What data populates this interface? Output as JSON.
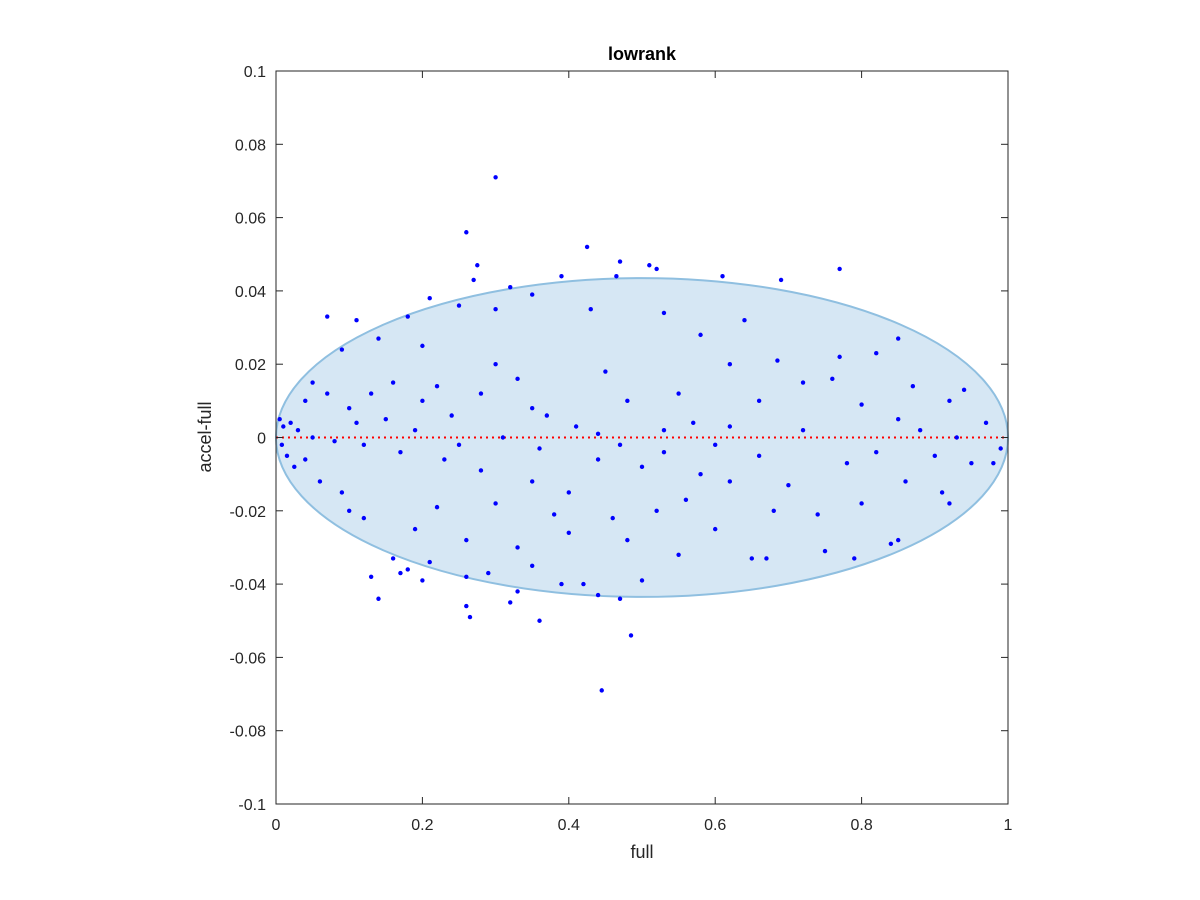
{
  "chart_data": {
    "type": "scatter",
    "title": "lowrank",
    "xlabel": "full",
    "ylabel": "accel-full",
    "xlim": [
      0,
      1
    ],
    "ylim": [
      -0.1,
      0.1
    ],
    "xticks": [
      0,
      0.2,
      0.4,
      0.6,
      0.8,
      1
    ],
    "xtick_labels": [
      "0",
      "0.2",
      "0.4",
      "0.6",
      "0.8",
      "1"
    ],
    "yticks": [
      -0.1,
      -0.08,
      -0.06,
      -0.04,
      -0.02,
      0,
      0.02,
      0.04,
      0.06,
      0.08,
      0.1
    ],
    "ytick_labels": [
      "-0.1",
      "-0.08",
      "-0.06",
      "-0.04",
      "-0.02",
      "0",
      "0.02",
      "0.04",
      "0.06",
      "0.08",
      "0.1"
    ],
    "grid": false,
    "legend": "none",
    "colors": {
      "points": "#0000ff",
      "ellipse_fill": "#d6e7f4",
      "ellipse_edge": "#8fbfe0",
      "zero_line": "#ff0000",
      "axes": "#262626"
    },
    "ellipse": {
      "center": [
        0.5,
        0.0
      ],
      "x_radius": 0.5,
      "y_radius": 0.0435
    },
    "reference_line": {
      "y": 0,
      "style": "dotted",
      "x_range": [
        0,
        1
      ]
    },
    "series": [
      {
        "values": [
          [
            0.3,
            0.071
          ],
          [
            0.26,
            0.056
          ],
          [
            0.425,
            0.052
          ],
          [
            0.47,
            0.048
          ],
          [
            0.275,
            0.047
          ],
          [
            0.51,
            0.047
          ],
          [
            0.52,
            0.046
          ],
          [
            0.77,
            0.046
          ],
          [
            0.465,
            0.044
          ],
          [
            0.39,
            0.044
          ],
          [
            0.69,
            0.043
          ],
          [
            0.61,
            0.044
          ],
          [
            0.27,
            0.043
          ],
          [
            0.32,
            0.041
          ],
          [
            0.21,
            0.038
          ],
          [
            0.35,
            0.039
          ],
          [
            0.25,
            0.036
          ],
          [
            0.3,
            0.035
          ],
          [
            0.43,
            0.035
          ],
          [
            0.53,
            0.034
          ],
          [
            0.18,
            0.033
          ],
          [
            0.07,
            0.033
          ],
          [
            0.11,
            0.032
          ],
          [
            0.64,
            0.032
          ],
          [
            0.85,
            0.027
          ],
          [
            0.58,
            0.028
          ],
          [
            0.82,
            0.023
          ],
          [
            0.685,
            0.021
          ],
          [
            0.77,
            0.022
          ],
          [
            0.62,
            0.02
          ],
          [
            0.14,
            0.027
          ],
          [
            0.09,
            0.024
          ],
          [
            0.2,
            0.025
          ],
          [
            0.45,
            0.018
          ],
          [
            0.3,
            0.02
          ],
          [
            0.76,
            0.016
          ],
          [
            0.87,
            0.014
          ],
          [
            0.94,
            0.013
          ],
          [
            0.72,
            0.015
          ],
          [
            0.55,
            0.012
          ],
          [
            0.48,
            0.01
          ],
          [
            0.66,
            0.01
          ],
          [
            0.8,
            0.009
          ],
          [
            0.92,
            0.01
          ],
          [
            0.35,
            0.008
          ],
          [
            0.85,
            0.005
          ],
          [
            0.97,
            0.004
          ],
          [
            0.62,
            0.003
          ],
          [
            0.72,
            0.002
          ],
          [
            0.88,
            0.002
          ],
          [
            0.93,
            0.0
          ],
          [
            0.99,
            -0.003
          ],
          [
            0.98,
            -0.007
          ],
          [
            0.9,
            -0.005
          ],
          [
            0.82,
            -0.004
          ],
          [
            0.78,
            -0.007
          ],
          [
            0.66,
            -0.005
          ],
          [
            0.58,
            -0.01
          ],
          [
            0.5,
            -0.008
          ],
          [
            0.44,
            -0.006
          ],
          [
            0.86,
            -0.012
          ],
          [
            0.91,
            -0.015
          ],
          [
            0.95,
            -0.007
          ],
          [
            0.7,
            -0.013
          ],
          [
            0.62,
            -0.012
          ],
          [
            0.56,
            -0.017
          ],
          [
            0.74,
            -0.021
          ],
          [
            0.68,
            -0.02
          ],
          [
            0.8,
            -0.018
          ],
          [
            0.92,
            -0.018
          ],
          [
            0.52,
            -0.02
          ],
          [
            0.46,
            -0.022
          ],
          [
            0.38,
            -0.021
          ],
          [
            0.3,
            -0.018
          ],
          [
            0.22,
            -0.019
          ],
          [
            0.6,
            -0.025
          ],
          [
            0.65,
            -0.033
          ],
          [
            0.67,
            -0.033
          ],
          [
            0.75,
            -0.031
          ],
          [
            0.79,
            -0.033
          ],
          [
            0.84,
            -0.029
          ],
          [
            0.85,
            -0.028
          ],
          [
            0.55,
            -0.032
          ],
          [
            0.48,
            -0.028
          ],
          [
            0.4,
            -0.026
          ],
          [
            0.33,
            -0.03
          ],
          [
            0.26,
            -0.028
          ],
          [
            0.19,
            -0.025
          ],
          [
            0.12,
            -0.022
          ],
          [
            0.35,
            -0.035
          ],
          [
            0.29,
            -0.037
          ],
          [
            0.21,
            -0.034
          ],
          [
            0.18,
            -0.036
          ],
          [
            0.16,
            -0.033
          ],
          [
            0.13,
            -0.038
          ],
          [
            0.17,
            -0.037
          ],
          [
            0.2,
            -0.039
          ],
          [
            0.26,
            -0.038
          ],
          [
            0.39,
            -0.04
          ],
          [
            0.42,
            -0.04
          ],
          [
            0.5,
            -0.039
          ],
          [
            0.33,
            -0.042
          ],
          [
            0.44,
            -0.043
          ],
          [
            0.47,
            -0.044
          ],
          [
            0.14,
            -0.044
          ],
          [
            0.26,
            -0.046
          ],
          [
            0.32,
            -0.045
          ],
          [
            0.36,
            -0.05
          ],
          [
            0.485,
            -0.054
          ],
          [
            0.445,
            -0.069
          ],
          [
            0.265,
            -0.049
          ],
          [
            0.4,
            -0.015
          ],
          [
            0.35,
            -0.012
          ],
          [
            0.28,
            -0.009
          ],
          [
            0.23,
            -0.006
          ],
          [
            0.17,
            -0.004
          ],
          [
            0.12,
            -0.002
          ],
          [
            0.08,
            -0.001
          ],
          [
            0.05,
            0.0
          ],
          [
            0.03,
            0.002
          ],
          [
            0.02,
            0.004
          ],
          [
            0.01,
            0.003
          ],
          [
            0.005,
            0.005
          ],
          [
            0.008,
            -0.002
          ],
          [
            0.015,
            -0.005
          ],
          [
            0.025,
            -0.008
          ],
          [
            0.04,
            -0.006
          ],
          [
            0.06,
            -0.012
          ],
          [
            0.09,
            -0.015
          ],
          [
            0.1,
            -0.02
          ],
          [
            0.07,
            0.012
          ],
          [
            0.05,
            0.015
          ],
          [
            0.04,
            0.01
          ],
          [
            0.1,
            0.008
          ],
          [
            0.13,
            0.012
          ],
          [
            0.16,
            0.015
          ],
          [
            0.2,
            0.01
          ],
          [
            0.24,
            0.006
          ],
          [
            0.22,
            0.014
          ],
          [
            0.28,
            0.012
          ],
          [
            0.33,
            0.016
          ],
          [
            0.37,
            0.006
          ],
          [
            0.41,
            0.003
          ],
          [
            0.44,
            0.001
          ],
          [
            0.53,
            0.002
          ],
          [
            0.57,
            0.004
          ],
          [
            0.6,
            -0.002
          ],
          [
            0.53,
            -0.004
          ],
          [
            0.47,
            -0.002
          ],
          [
            0.36,
            -0.003
          ],
          [
            0.31,
            0.0
          ],
          [
            0.25,
            -0.002
          ],
          [
            0.19,
            0.002
          ],
          [
            0.15,
            0.005
          ],
          [
            0.11,
            0.004
          ]
        ]
      }
    ]
  }
}
